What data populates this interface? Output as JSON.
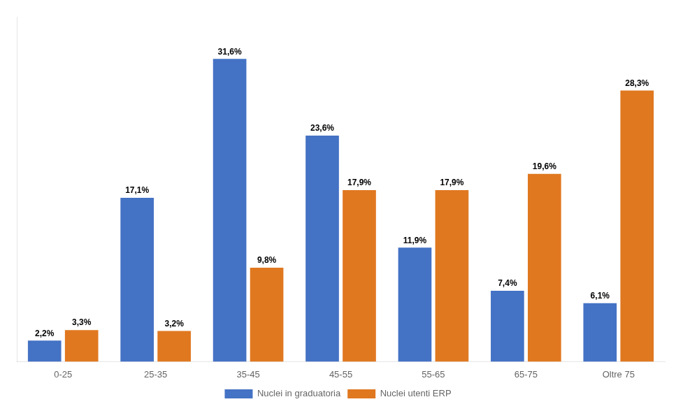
{
  "chart_data": {
    "type": "bar",
    "categories": [
      "0-25",
      "25-35",
      "35-45",
      "45-55",
      "55-65",
      "65-75",
      "Oltre 75"
    ],
    "series": [
      {
        "name": "Nuclei in graduatoria",
        "color": "#4472C4",
        "values": [
          2.2,
          17.1,
          31.6,
          23.6,
          11.9,
          7.4,
          6.1
        ],
        "value_labels": [
          "2,2%",
          "17,1%",
          "31,6%",
          "23,6%",
          "11,9%",
          "7,4%",
          "6,1%"
        ]
      },
      {
        "name": "Nuclei utenti ERP",
        "color": "#E07820",
        "values": [
          3.3,
          3.2,
          9.8,
          17.9,
          17.9,
          19.6,
          28.3
        ],
        "value_labels": [
          "3,3%",
          "3,2%",
          "9,8%",
          "17,9%",
          "17,9%",
          "19,6%",
          "28,3%"
        ]
      }
    ],
    "ylim": [
      0,
      36
    ],
    "grid": false,
    "legend": "bottom",
    "data_labels": true,
    "tick_labels": "x"
  }
}
